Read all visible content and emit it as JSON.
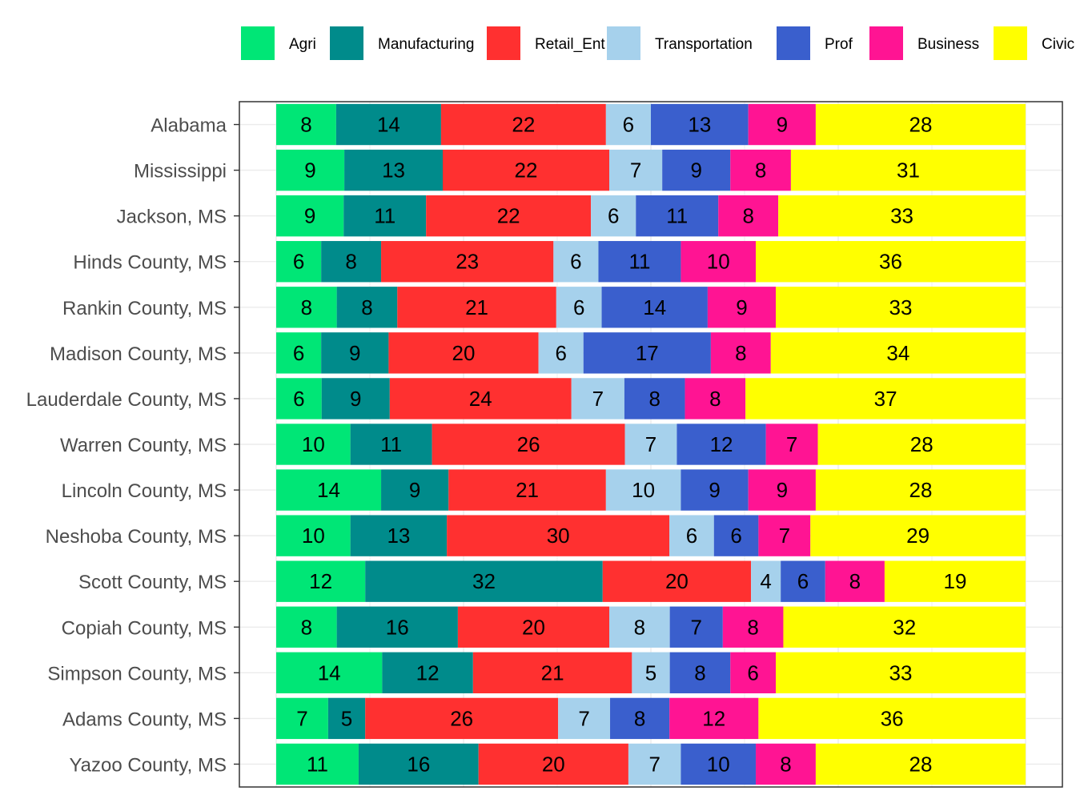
{
  "chart_data": {
    "type": "bar",
    "orientation": "horizontal",
    "stacked": true,
    "stack_normalized": true,
    "legend_position": "top",
    "grid": true,
    "categories": [
      "Alabama",
      "Mississippi",
      "Jackson, MS",
      "Hinds County, MS",
      "Rankin County, MS",
      "Madison County, MS",
      "Lauderdale County, MS",
      "Warren County, MS",
      "Lincoln County, MS",
      "Neshoba County, MS",
      "Scott County, MS",
      "Copiah County, MS",
      "Simpson County, MS",
      "Adams County, MS",
      "Yazoo County, MS"
    ],
    "series": [
      {
        "name": "Agri",
        "color": "#00E676",
        "values": [
          8,
          9,
          9,
          6,
          8,
          6,
          6,
          10,
          14,
          10,
          12,
          8,
          14,
          7,
          11
        ]
      },
      {
        "name": "Manufacturing",
        "color": "#008B8B",
        "values": [
          14,
          13,
          11,
          8,
          8,
          9,
          9,
          11,
          9,
          13,
          32,
          16,
          12,
          5,
          16
        ]
      },
      {
        "name": "Retail_Ent",
        "color": "#FF3030",
        "values": [
          22,
          22,
          22,
          23,
          21,
          20,
          24,
          26,
          21,
          30,
          20,
          20,
          21,
          26,
          20
        ]
      },
      {
        "name": "Transportation",
        "color": "#A6D1EC",
        "values": [
          6,
          7,
          6,
          6,
          6,
          6,
          7,
          7,
          10,
          6,
          4,
          8,
          5,
          7,
          7
        ]
      },
      {
        "name": "Prof",
        "color": "#3A5FCD",
        "values": [
          13,
          9,
          11,
          11,
          14,
          17,
          8,
          12,
          9,
          6,
          6,
          7,
          8,
          8,
          10
        ]
      },
      {
        "name": "Business",
        "color": "#FF1493",
        "values": [
          9,
          8,
          8,
          10,
          9,
          8,
          8,
          7,
          9,
          7,
          8,
          8,
          6,
          12,
          8
        ]
      },
      {
        "name": "Civic",
        "color": "#FFFF00",
        "values": [
          28,
          31,
          33,
          36,
          33,
          34,
          37,
          28,
          28,
          29,
          19,
          32,
          33,
          36,
          28
        ]
      }
    ]
  }
}
